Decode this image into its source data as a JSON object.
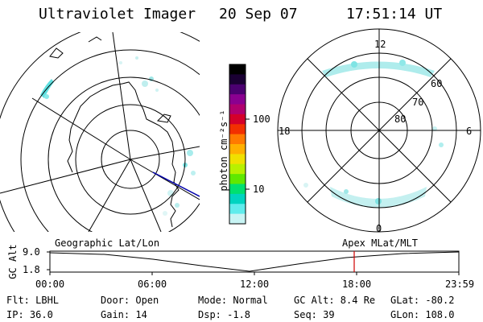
{
  "header": {
    "instrument": "Ultraviolet Imager",
    "date": "20 Sep 07",
    "time": "17:51:14 UT"
  },
  "colorbar": {
    "label": "photon cm⁻²s⁻¹",
    "ticks": [
      "100",
      "10"
    ],
    "colors": [
      "#000000",
      "#1a0033",
      "#4b0070",
      "#8a0090",
      "#b0006e",
      "#d4002a",
      "#f23000",
      "#ff7a00",
      "#ffb000",
      "#f0e000",
      "#b8f000",
      "#60e800",
      "#00e070",
      "#00d4c0",
      "#60ecec",
      "#c8f4f4"
    ]
  },
  "geo_map": {
    "label": "Geographic Lat/Lon"
  },
  "polar_map": {
    "label": "Apex MLat/MLT",
    "mlt_labels": [
      "12",
      "18",
      "6",
      "0"
    ],
    "lat_labels": [
      "60",
      "70",
      "80"
    ]
  },
  "alt_plot": {
    "ylabel": "GC Alt",
    "yticks": [
      "9.0",
      "1.8"
    ],
    "xticks": [
      "00:00",
      "06:00",
      "12:00",
      "18:00",
      "23:59"
    ],
    "marker_color": "#d00000"
  },
  "info": {
    "flt": "Flt: LBHL",
    "ip": "IP: 36.0",
    "door": "Door: Open",
    "gain": "Gain: 14",
    "mode": "Mode: Normal",
    "dsp": "Dsp:   -1.8",
    "gcalt": "GC Alt: 8.4 Re",
    "seq": "Seq: 39",
    "glat": "GLat: -80.2",
    "glon": "GLon: 108.0"
  }
}
